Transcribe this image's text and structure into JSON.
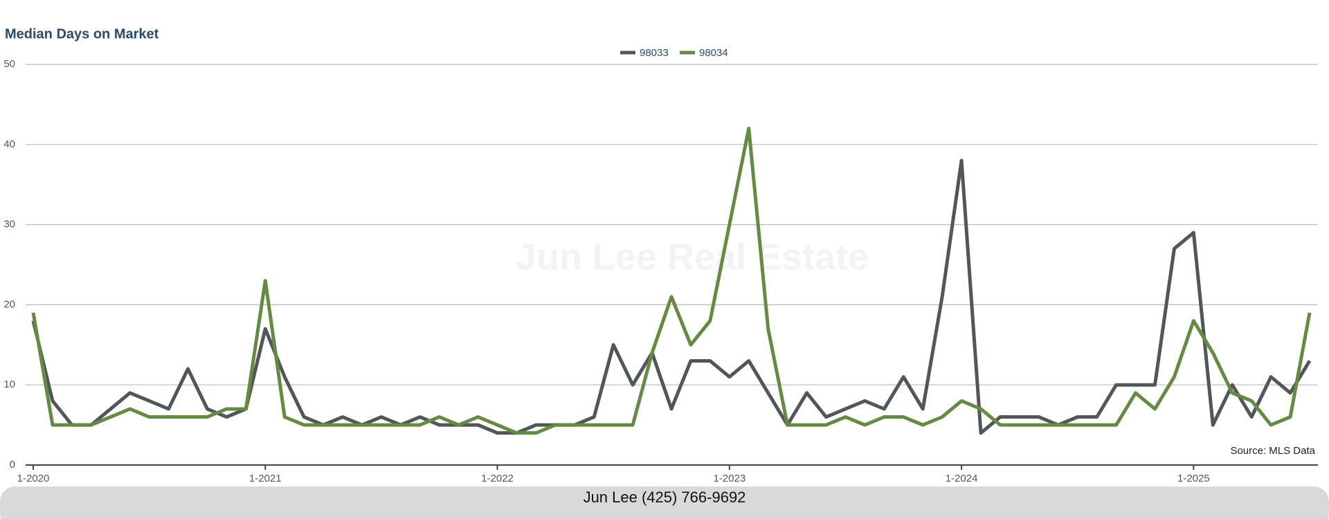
{
  "chart_data": {
    "type": "line",
    "title": "Median Days on Market",
    "watermark": "Jun Lee Real Estate",
    "source": "Source: MLS Data",
    "footer": "Jun Lee (425) 766-9692",
    "categories": [
      "1-2020",
      null,
      null,
      null,
      null,
      null,
      null,
      null,
      null,
      null,
      null,
      null,
      "1-2021",
      null,
      null,
      null,
      null,
      null,
      null,
      null,
      null,
      null,
      null,
      null,
      "1-2022",
      null,
      null,
      null,
      null,
      null,
      null,
      null,
      null,
      null,
      null,
      null,
      "1-2023",
      null,
      null,
      null,
      null,
      null,
      null,
      null,
      null,
      null,
      null,
      null,
      "1-2024",
      null,
      null,
      null,
      null,
      null,
      null,
      null,
      null,
      null,
      null,
      null,
      "1-2025",
      null,
      null,
      null,
      null,
      null,
      null
    ],
    "series": [
      {
        "name": "98033",
        "color": "#505759",
        "values": [
          18,
          8,
          5,
          5,
          7,
          9,
          8,
          7,
          12,
          7,
          6,
          7,
          17,
          11,
          6,
          5,
          6,
          5,
          6,
          5,
          6,
          5,
          5,
          5,
          4,
          4,
          5,
          5,
          5,
          6,
          15,
          10,
          14,
          7,
          13,
          13,
          11,
          13,
          9,
          5,
          9,
          6,
          7,
          8,
          7,
          11,
          7,
          21,
          38,
          4,
          6,
          6,
          6,
          5,
          6,
          6,
          10,
          10,
          10,
          27,
          29,
          5,
          10,
          6,
          11,
          9,
          13
        ]
      },
      {
        "name": "98034",
        "color": "#658b43",
        "values": [
          19,
          5,
          5,
          5,
          6,
          7,
          6,
          6,
          6,
          6,
          7,
          7,
          23,
          6,
          5,
          5,
          5,
          5,
          5,
          5,
          5,
          6,
          5,
          6,
          5,
          4,
          4,
          5,
          5,
          5,
          5,
          5,
          14,
          21,
          15,
          18,
          30,
          42,
          17,
          5,
          5,
          5,
          6,
          5,
          6,
          6,
          5,
          6,
          8,
          7,
          5,
          5,
          5,
          5,
          5,
          5,
          5,
          9,
          7,
          11,
          18,
          14,
          9,
          8,
          5,
          6,
          19
        ]
      }
    ],
    "ylim": [
      0,
      50
    ],
    "yticks": [
      0,
      10,
      20,
      30,
      40,
      50
    ],
    "grid": true,
    "legend": "top"
  }
}
